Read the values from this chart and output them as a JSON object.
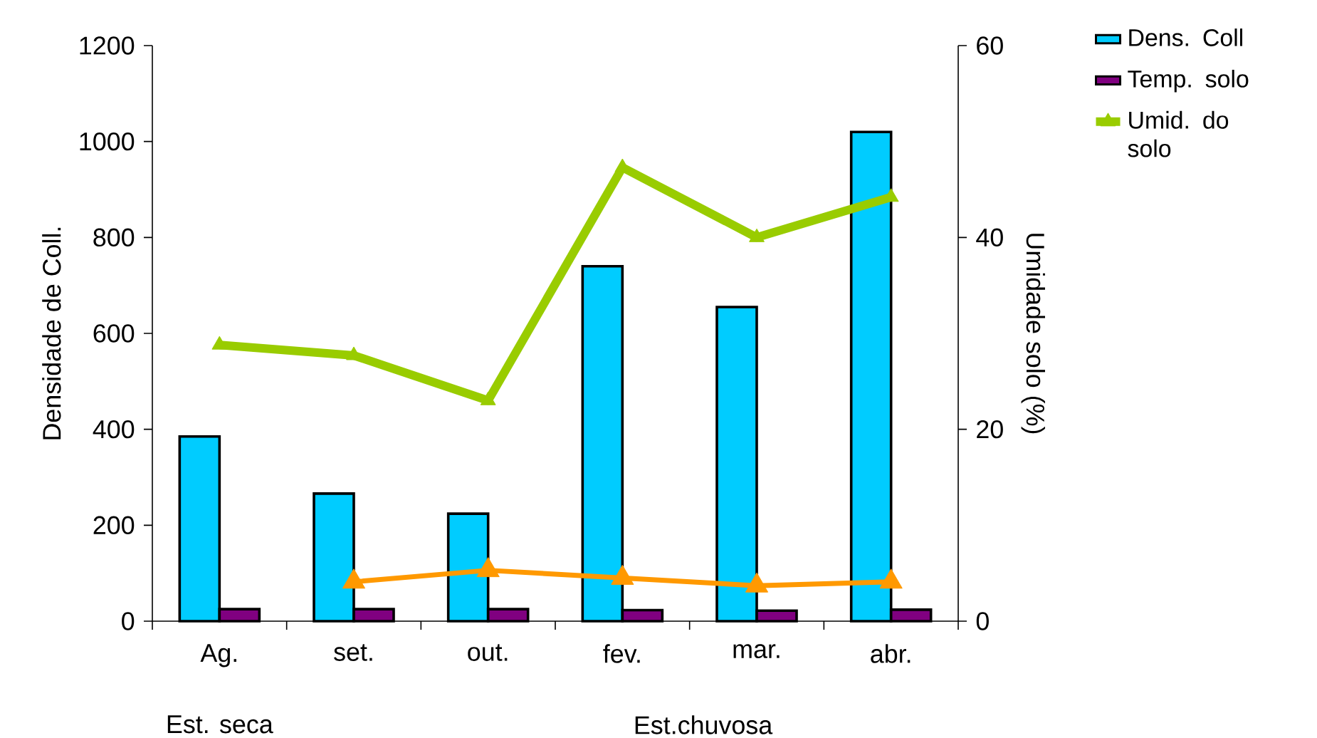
{
  "chart_data": {
    "type": "bar",
    "categories": [
      "Ag.",
      "set.",
      "out.",
      "fev.",
      "mar.",
      "abr."
    ],
    "series": [
      {
        "name": "Dens. Coll",
        "type": "bar",
        "color": "#00ccff",
        "values": [
          385,
          266,
          224,
          740,
          655,
          1020
        ]
      },
      {
        "name": "Temp. solo",
        "type": "bar",
        "color": "#800080",
        "values": [
          25,
          25,
          25,
          23,
          22,
          24
        ]
      },
      {
        "name": "Umid. do solo",
        "type": "line",
        "axis": "y2",
        "color": "#99cc00",
        "values": [
          28.8,
          27.7,
          23,
          47.3,
          40,
          44.2
        ]
      },
      {
        "type": "line",
        "axis": "y2",
        "color": "#ff9900",
        "values": [
          null,
          4.1,
          5.3,
          4.5,
          3.7,
          4.1
        ]
      }
    ],
    "ylabel": "Densidade de Coll.",
    "y2label": "Umidade solo (%)",
    "ylim": [
      0,
      1200
    ],
    "yticks": [
      0,
      200,
      400,
      600,
      800,
      1000,
      1200
    ],
    "y2lim": [
      0,
      60
    ],
    "y2ticks": [
      0,
      20,
      40,
      60
    ],
    "marker": "triangle",
    "line_style": "solid",
    "legend": "top right",
    "annotations": [
      "Est. seca",
      "Est.chuvosa"
    ]
  }
}
